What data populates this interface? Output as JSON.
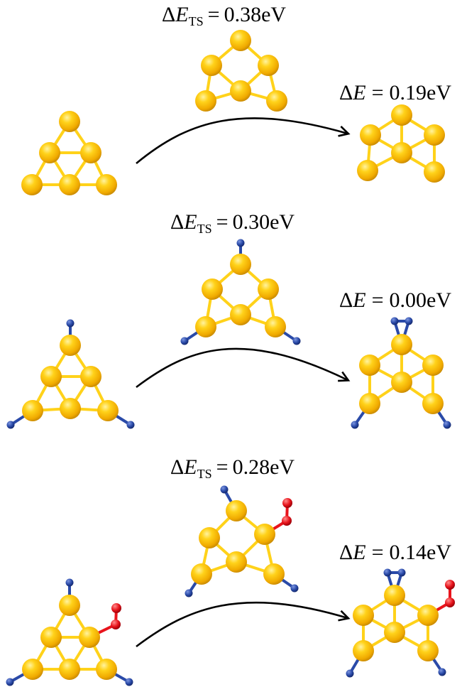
{
  "colors": {
    "gold": "#f2b90c",
    "gold_dark": "#c98a00",
    "gold_light": "#ffe77a",
    "bond_gold": "#ffd21a",
    "blue": "#2a4aa8",
    "red": "#e8141c",
    "arrow": "#000000",
    "background": "#ffffff"
  },
  "symbols": {
    "delta": "Δ",
    "E": "E",
    "ts_subscript": "TS",
    "equals": "="
  },
  "rows": [
    {
      "id": "bare",
      "transition_state": {
        "value": "0.38",
        "unit": "eV"
      },
      "product": {
        "value": "0.19",
        "unit": "eV"
      }
    },
    {
      "id": "with-ligands",
      "transition_state": {
        "value": "0.30",
        "unit": "eV"
      },
      "product": {
        "value": "0.00",
        "unit": "eV"
      }
    },
    {
      "id": "with-ligands-and-o2",
      "transition_state": {
        "value": "0.28",
        "unit": "eV"
      },
      "product": {
        "value": "0.14",
        "unit": "eV"
      }
    }
  ]
}
